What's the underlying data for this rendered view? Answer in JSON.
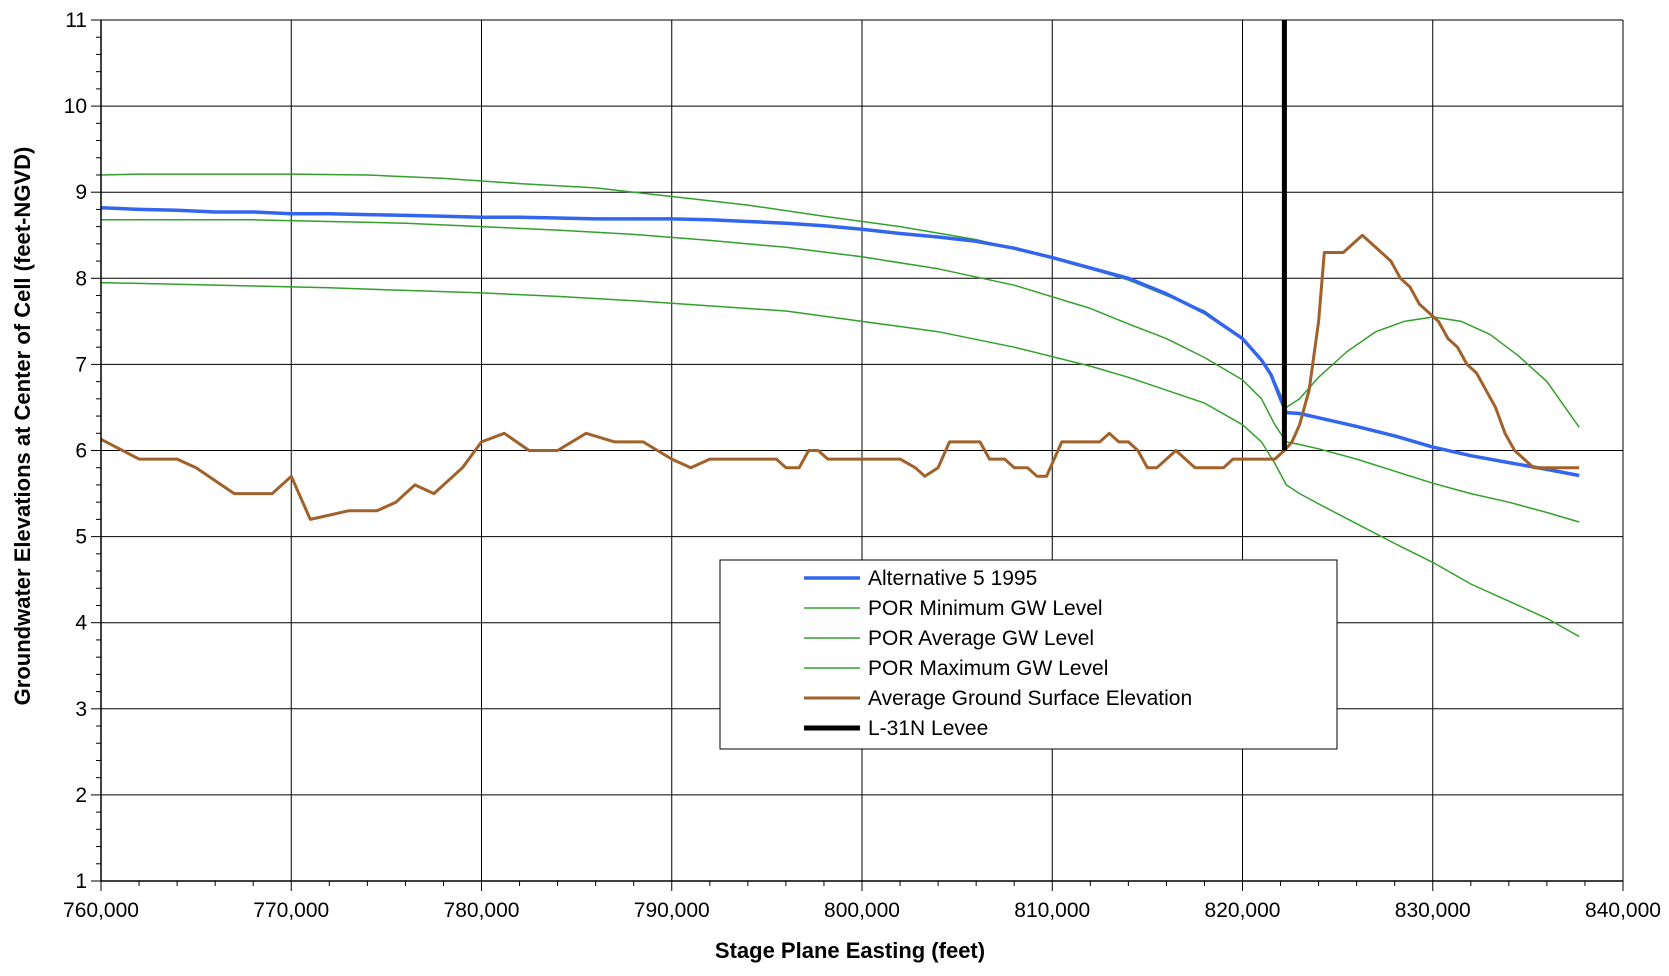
{
  "chart_data": {
    "type": "line",
    "title": "",
    "xlabel": "Stage Plane Easting (feet)",
    "ylabel": "Groundwater Elevations at Center of Cell (feet-NGVD)",
    "xlim": [
      760000,
      840000
    ],
    "ylim": [
      1,
      11
    ],
    "x_ticks": [
      760000,
      770000,
      780000,
      790000,
      800000,
      810000,
      820000,
      830000,
      840000
    ],
    "x_tick_labels": [
      "760,000",
      "770,000",
      "780,000",
      "790,000",
      "800,000",
      "810,000",
      "820,000",
      "830,000",
      "840,000"
    ],
    "y_ticks": [
      1,
      2,
      3,
      4,
      5,
      6,
      7,
      8,
      9,
      10,
      11
    ],
    "y_tick_labels": [
      "1",
      "2",
      "3",
      "4",
      "5",
      "6",
      "7",
      "8",
      "9",
      "10",
      "11"
    ],
    "grid": true,
    "legend_position": "lower-center",
    "series": [
      {
        "name": "Alternative 5 1995",
        "color": "#3366ee",
        "width": 3.5,
        "x": [
          760000,
          762000,
          764000,
          766000,
          768000,
          770000,
          772000,
          774000,
          776000,
          778000,
          780000,
          782000,
          784000,
          786000,
          788000,
          790000,
          792000,
          794000,
          796000,
          798000,
          800000,
          802000,
          804000,
          806000,
          808000,
          810000,
          812000,
          814000,
          816000,
          818000,
          820000,
          821000,
          821500,
          822000,
          822300,
          823000,
          824000,
          825000,
          826000,
          828000,
          830000,
          832000,
          834000,
          836000,
          837700
        ],
        "y": [
          8.82,
          8.8,
          8.79,
          8.77,
          8.77,
          8.75,
          8.75,
          8.74,
          8.73,
          8.72,
          8.71,
          8.71,
          8.7,
          8.69,
          8.69,
          8.69,
          8.68,
          8.66,
          8.64,
          8.61,
          8.57,
          8.52,
          8.48,
          8.43,
          8.35,
          8.24,
          8.12,
          8.0,
          7.82,
          7.6,
          7.3,
          7.05,
          6.88,
          6.6,
          6.44,
          6.43,
          6.38,
          6.33,
          6.28,
          6.17,
          6.04,
          5.94,
          5.86,
          5.78,
          5.71
        ]
      },
      {
        "name": "POR Minimum GW Level",
        "color": "#33a02c",
        "width": 1.5,
        "x": [
          760000,
          764000,
          768000,
          772000,
          776000,
          780000,
          784000,
          788000,
          792000,
          796000,
          800000,
          804000,
          808000,
          812000,
          814000,
          816000,
          818000,
          820000,
          821000,
          821700,
          822300,
          823000,
          824000,
          826000,
          828000,
          830000,
          832000,
          834000,
          836000,
          837700
        ],
        "y": [
          7.95,
          7.93,
          7.91,
          7.89,
          7.86,
          7.83,
          7.79,
          7.74,
          7.68,
          7.62,
          7.5,
          7.38,
          7.2,
          6.98,
          6.85,
          6.7,
          6.55,
          6.3,
          6.1,
          5.85,
          5.6,
          5.5,
          5.38,
          5.15,
          4.92,
          4.7,
          4.45,
          4.25,
          4.05,
          3.84
        ]
      },
      {
        "name": "POR Average GW Level",
        "color": "#33a02c",
        "width": 1.5,
        "x": [
          760000,
          764000,
          768000,
          772000,
          776000,
          780000,
          784000,
          788000,
          792000,
          796000,
          800000,
          804000,
          808000,
          812000,
          814000,
          816000,
          818000,
          820000,
          821000,
          821700,
          822300,
          823000,
          824000,
          826000,
          828000,
          830000,
          832000,
          834000,
          836000,
          837700
        ],
        "y": [
          8.68,
          8.68,
          8.68,
          8.66,
          8.64,
          8.6,
          8.56,
          8.51,
          8.44,
          8.36,
          8.25,
          8.11,
          7.92,
          7.65,
          7.47,
          7.3,
          7.08,
          6.82,
          6.6,
          6.3,
          6.1,
          6.07,
          6.02,
          5.9,
          5.76,
          5.62,
          5.5,
          5.4,
          5.28,
          5.17
        ]
      },
      {
        "name": "POR Maximum GW Level",
        "color": "#33a02c",
        "width": 1.5,
        "x": [
          760000,
          762000,
          766000,
          770000,
          774000,
          778000,
          782000,
          786000,
          790000,
          794000,
          798000,
          802000,
          806000,
          810000,
          814000,
          818000,
          820000,
          821000,
          821700,
          822300,
          823000,
          824000,
          825500,
          827000,
          828500,
          830000,
          831500,
          833000,
          834500,
          836000,
          837700
        ],
        "y": [
          9.2,
          9.21,
          9.21,
          9.21,
          9.2,
          9.16,
          9.1,
          9.05,
          8.95,
          8.85,
          8.72,
          8.6,
          8.45,
          8.24,
          7.98,
          7.62,
          7.3,
          7.05,
          6.8,
          6.5,
          6.6,
          6.85,
          7.15,
          7.38,
          7.5,
          7.55,
          7.5,
          7.35,
          7.1,
          6.8,
          6.27
        ]
      },
      {
        "name": "Average Ground Surface Elevation",
        "color": "#a0612a",
        "width": 3,
        "x": [
          760000,
          762000,
          764000,
          765000,
          767000,
          769000,
          770000,
          771000,
          772000,
          773000,
          774500,
          775500,
          776500,
          777500,
          779000,
          780000,
          781200,
          782500,
          784000,
          785500,
          787000,
          788500,
          790000,
          791000,
          792000,
          793000,
          794000,
          795000,
          795500,
          796000,
          796700,
          797200,
          797700,
          798200,
          799000,
          800000,
          801000,
          802000,
          802800,
          803300,
          804000,
          804600,
          805500,
          806200,
          806700,
          807500,
          808000,
          808700,
          809200,
          809700,
          810500,
          811500,
          812500,
          813000,
          813500,
          814000,
          814500,
          815000,
          815500,
          816000,
          816500,
          817000,
          817500,
          818000,
          818500,
          819000,
          819500,
          820000,
          820500,
          821000,
          821700,
          822200,
          822600,
          823000,
          823500,
          824000,
          824300,
          824800,
          825300,
          825800,
          826300,
          826800,
          827300,
          827800,
          828300,
          828800,
          829300,
          829800,
          830300,
          830800,
          831300,
          831800,
          832300,
          832800,
          833300,
          833800,
          834300,
          834800,
          835300,
          835800,
          836300,
          836800,
          837300,
          837700
        ],
        "y": [
          6.13,
          5.9,
          5.9,
          5.8,
          5.5,
          5.5,
          5.7,
          5.2,
          5.25,
          5.3,
          5.3,
          5.4,
          5.6,
          5.5,
          5.8,
          6.1,
          6.2,
          6.0,
          6.0,
          6.2,
          6.1,
          6.1,
          5.9,
          5.8,
          5.9,
          5.9,
          5.9,
          5.9,
          5.9,
          5.8,
          5.8,
          6.0,
          6.0,
          5.9,
          5.9,
          5.9,
          5.9,
          5.9,
          5.8,
          5.7,
          5.8,
          6.1,
          6.1,
          6.1,
          5.9,
          5.9,
          5.8,
          5.8,
          5.7,
          5.7,
          6.1,
          6.1,
          6.1,
          6.2,
          6.1,
          6.1,
          6.0,
          5.8,
          5.8,
          5.9,
          6.0,
          5.9,
          5.8,
          5.8,
          5.8,
          5.8,
          5.9,
          5.9,
          5.9,
          5.9,
          5.9,
          6.0,
          6.1,
          6.3,
          6.7,
          7.5,
          8.3,
          8.3,
          8.3,
          8.4,
          8.5,
          8.4,
          8.3,
          8.2,
          8.0,
          7.9,
          7.7,
          7.6,
          7.5,
          7.3,
          7.2,
          7.0,
          6.9,
          6.7,
          6.5,
          6.2,
          6.0,
          5.9,
          5.8,
          5.8,
          5.8,
          5.8,
          5.8,
          5.8
        ]
      },
      {
        "name": "L-31N Levee",
        "color": "#000000",
        "width": 5,
        "x": [
          822200,
          822200
        ],
        "y": [
          6.0,
          11.0
        ]
      }
    ]
  }
}
